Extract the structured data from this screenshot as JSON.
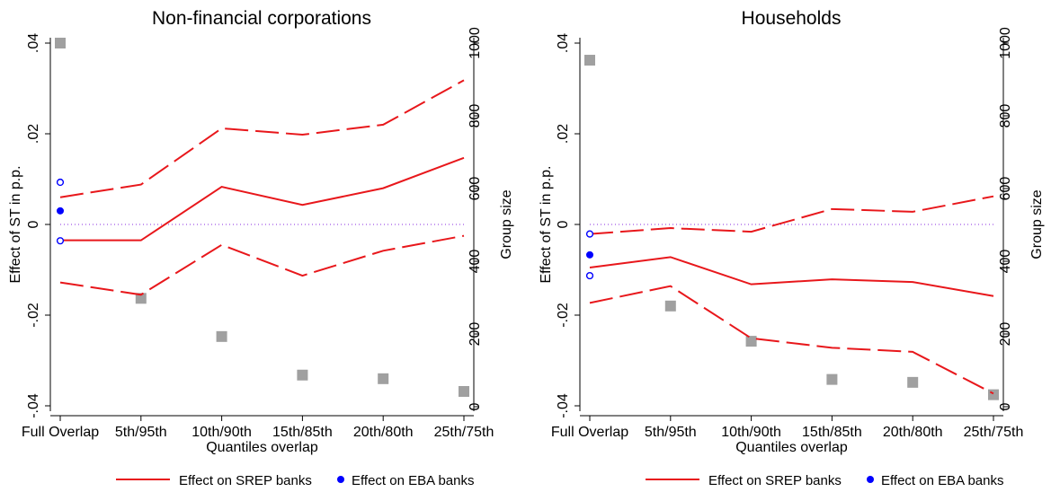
{
  "chart_data": [
    {
      "type": "line",
      "title": "Non-financial corporations",
      "xlabel": "Quantiles overlap",
      "ylabel": "Effect of ST in p.p.",
      "y2label": "Group size",
      "categories": [
        "Full Overlap",
        "5th/95th",
        "10th/90th",
        "15th/85th",
        "20th/80th",
        "25th/75th"
      ],
      "ylim": [
        -0.04,
        0.04
      ],
      "yticks": [
        ".04",
        ".02",
        "0",
        "-.02",
        "-.04"
      ],
      "yticks_values": [
        0.04,
        0.02,
        0,
        -0.02,
        -0.04
      ],
      "y2lim": [
        0,
        1000
      ],
      "y2ticks": [
        0,
        200,
        400,
        600,
        800,
        1000
      ],
      "series": [
        {
          "name": "Effect on SREP banks",
          "role": "point estimate",
          "values": [
            -0.0035,
            -0.0035,
            0.0083,
            0.0043,
            0.008,
            0.0147
          ]
        },
        {
          "role": "upper bound",
          "values": [
            0.006,
            0.0088,
            0.0212,
            0.0198,
            0.022,
            0.0318
          ]
        },
        {
          "role": "lower bound",
          "values": [
            -0.0128,
            -0.0155,
            -0.0045,
            -0.0113,
            -0.0058,
            -0.0025
          ]
        }
      ],
      "eba_banks": {
        "name": "Effect on EBA banks",
        "estimate": 0.003,
        "upper": 0.0093,
        "lower": -0.0036
      },
      "group_size": [
        1000,
        298,
        193,
        87,
        77,
        42
      ],
      "zero_line": true,
      "legend_position": "bottom"
    },
    {
      "type": "line",
      "title": "Households",
      "xlabel": "Quantiles overlap",
      "ylabel": "Effect of ST in p.p.",
      "y2label": "Group size",
      "categories": [
        "Full Overlap",
        "5th/95th",
        "10th/90th",
        "15th/85th",
        "20th/80th",
        "25th/75th"
      ],
      "ylim": [
        -0.04,
        0.04
      ],
      "yticks": [
        ".04",
        ".02",
        "0",
        "-.02",
        "-.04"
      ],
      "yticks_values": [
        0.04,
        0.02,
        0,
        -0.02,
        -0.04
      ],
      "y2lim": [
        0,
        1000
      ],
      "y2ticks": [
        0,
        200,
        400,
        600,
        800,
        1000
      ],
      "series": [
        {
          "name": "Effect on SREP banks",
          "role": "point estimate",
          "values": [
            -0.0095,
            -0.0072,
            -0.0132,
            -0.0121,
            -0.0127,
            -0.0158
          ]
        },
        {
          "role": "upper bound",
          "values": [
            -0.0021,
            -0.0008,
            -0.0016,
            0.0034,
            0.0028,
            0.0062
          ]
        },
        {
          "role": "lower bound",
          "values": [
            -0.0173,
            -0.0136,
            -0.0251,
            -0.0272,
            -0.0281,
            -0.0373
          ]
        }
      ],
      "eba_banks": {
        "name": "Effect on EBA banks",
        "estimate": -0.0067,
        "upper": -0.0021,
        "lower": -0.0113
      },
      "group_size": [
        953,
        277,
        180,
        75,
        67,
        33
      ],
      "zero_line": true,
      "legend_position": "bottom"
    }
  ],
  "colors": {
    "srep": "#e8171b",
    "eba": "#0000ff",
    "group_size": "#a0a0a0",
    "zero_line": "#8a2be2"
  }
}
